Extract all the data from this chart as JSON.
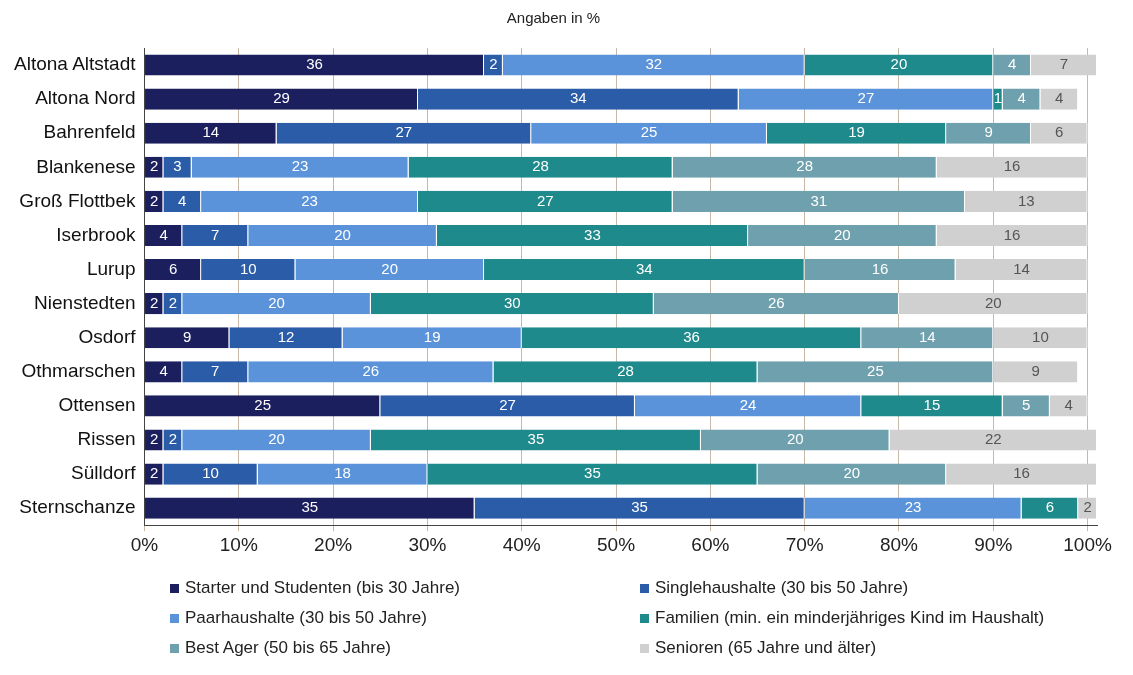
{
  "chart_data": {
    "type": "bar",
    "orientation": "horizontal",
    "stacked": true,
    "title": "Angaben in %",
    "categories": [
      "Altona Altstadt",
      "Altona Nord",
      "Bahrenfeld",
      "Blankenese",
      "Groß Flottbek",
      "Iserbrook",
      "Lurup",
      "Nienstedten",
      "Osdorf",
      "Othmarschen",
      "Ottensen",
      "Rissen",
      "Sülldorf",
      "Sternschanze"
    ],
    "series": [
      {
        "name": "Starter und Studenten (bis 30 Jahre)",
        "color": "#1b1f5e",
        "values": [
          36,
          29,
          14,
          2,
          2,
          4,
          6,
          2,
          9,
          4,
          25,
          2,
          2,
          35
        ]
      },
      {
        "name": "Singlehaushalte (30 bis 50 Jahre)",
        "color": "#2a5ca8",
        "values": [
          2,
          34,
          27,
          3,
          4,
          7,
          10,
          2,
          12,
          7,
          27,
          2,
          10,
          35
        ]
      },
      {
        "name": "Paarhaushalte (30 bis 50 Jahre)",
        "color": "#5b93db",
        "values": [
          32,
          27,
          25,
          23,
          23,
          20,
          20,
          20,
          19,
          26,
          24,
          20,
          18,
          23
        ]
      },
      {
        "name": "Familien (min. ein minderjähriges Kind im Haushalt)",
        "color": "#1f8a8c",
        "values": [
          20,
          1,
          19,
          28,
          27,
          33,
          34,
          30,
          36,
          28,
          15,
          35,
          35,
          6
        ]
      },
      {
        "name": "Best Ager (50 bis 65 Jahre)",
        "color": "#6fa0ad",
        "values": [
          4,
          4,
          9,
          28,
          31,
          20,
          16,
          26,
          14,
          25,
          5,
          20,
          20,
          null
        ]
      },
      {
        "name": "Senioren (65 Jahre und älter)",
        "color": "#d0d0d0",
        "values": [
          7,
          4,
          6,
          16,
          13,
          16,
          14,
          20,
          10,
          9,
          4,
          22,
          16,
          2
        ]
      }
    ],
    "xlim": [
      0,
      101
    ],
    "xticks": [
      {
        "value": 0,
        "label": "0%"
      },
      {
        "value": 10,
        "label": "10%"
      },
      {
        "value": 20,
        "label": "20%"
      },
      {
        "value": 30,
        "label": "30%"
      },
      {
        "value": 40,
        "label": "40%"
      },
      {
        "value": 50,
        "label": "50%"
      },
      {
        "value": 60,
        "label": "60%"
      },
      {
        "value": 70,
        "label": "70%"
      },
      {
        "value": 80,
        "label": "80%"
      },
      {
        "value": 90,
        "label": "90%"
      },
      {
        "value": 100,
        "label": "100%"
      }
    ],
    "grid": "x",
    "legend": "bottom",
    "data_labels": true
  }
}
